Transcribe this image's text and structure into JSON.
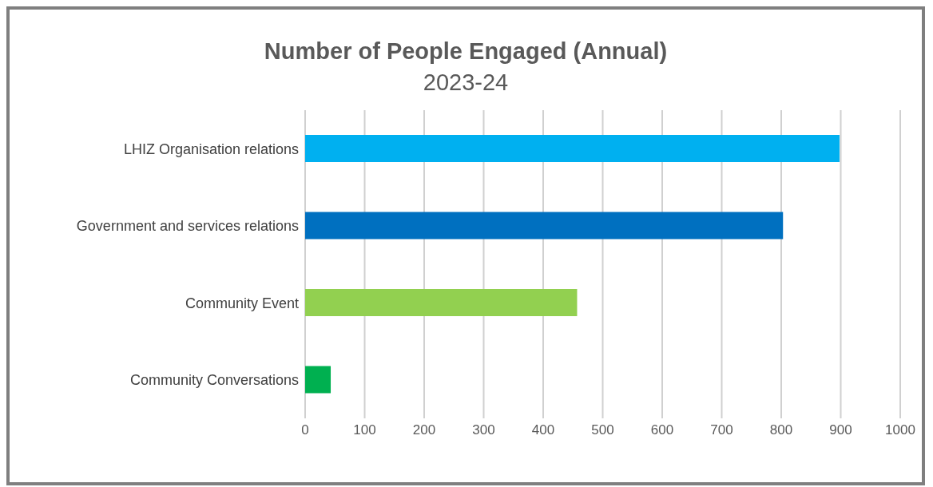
{
  "chart_data": {
    "type": "bar",
    "orientation": "horizontal",
    "title": "Number of People Engaged (Annual)",
    "subtitle": "2023-24",
    "categories": [
      "LHIZ Organisation relations",
      "Government and services relations",
      "Community Event",
      "Community Conversations"
    ],
    "values": [
      898,
      803,
      457,
      43
    ],
    "colors": [
      "#00b0f0",
      "#0070c0",
      "#92d050",
      "#00b050"
    ],
    "xlim": [
      0,
      1000
    ],
    "xticks": [
      0,
      100,
      200,
      300,
      400,
      500,
      600,
      700,
      800,
      900,
      1000
    ],
    "grid": "x"
  }
}
